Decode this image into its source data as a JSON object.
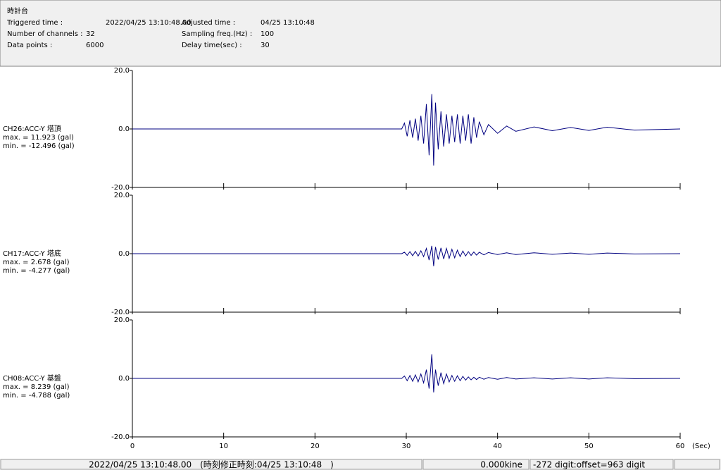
{
  "header": {
    "title": "時計台",
    "fields": [
      {
        "label": "Triggered time :",
        "value": "2022/04/25 13:10:48.00"
      },
      {
        "label": "Adjusted time :",
        "value": "04/25 13:10:48"
      },
      {
        "label": "Number of channels :",
        "value": "32"
      },
      {
        "label": "Sampling freq.(Hz) :",
        "value": "100"
      },
      {
        "label": "Data points :",
        "value": "6000"
      },
      {
        "label": "Delay time(sec) :",
        "value": "30"
      }
    ]
  },
  "chart_data": [
    {
      "type": "line",
      "label": "CH26:ACC-Y 塔頂",
      "max_label": "max. = 11.923 (gal)",
      "min_label": "min. = -12.496 (gal)",
      "ylim": [
        -20,
        20
      ],
      "yticks": [
        {
          "value": 20,
          "label": "20.0"
        },
        {
          "value": 0,
          "label": "0.0"
        },
        {
          "value": -20,
          "label": "-20.0"
        }
      ],
      "xlim": [
        0,
        60
      ],
      "xticks": [
        0,
        10,
        20,
        30,
        40,
        50,
        60
      ],
      "x": [
        0,
        29.5,
        29.8,
        30.1,
        30.4,
        30.7,
        31.0,
        31.3,
        31.6,
        31.9,
        32.2,
        32.5,
        32.8,
        33.0,
        33.2,
        33.5,
        33.8,
        34.1,
        34.4,
        34.7,
        35.0,
        35.3,
        35.6,
        35.9,
        36.2,
        36.5,
        36.8,
        37.1,
        37.4,
        37.7,
        38.0,
        38.5,
        39.0,
        40.0,
        41.0,
        42.0,
        44.0,
        46.0,
        48.0,
        50.0,
        52.0,
        55.0,
        60.0
      ],
      "series": [
        {
          "color": "#000080",
          "values": [
            0,
            0,
            2,
            -2.5,
            3,
            -3,
            3.5,
            -4,
            4.5,
            -5,
            8.5,
            -9,
            11.923,
            -12.496,
            9,
            -7,
            6,
            -6,
            5,
            -5,
            4.5,
            -4.5,
            5,
            -5,
            4.5,
            -4,
            5,
            -5,
            4,
            -3,
            2.5,
            -2,
            1.5,
            -1.5,
            1,
            -0.8,
            0.7,
            -0.6,
            0.5,
            -0.5,
            0.6,
            -0.4,
            0
          ]
        }
      ]
    },
    {
      "type": "line",
      "label": "CH17:ACC-Y 塔底",
      "max_label": "max. = 2.678 (gal)",
      "min_label": "min. = -4.277 (gal)",
      "ylim": [
        -20,
        20
      ],
      "yticks": [
        {
          "value": 20,
          "label": "20.0"
        },
        {
          "value": 0,
          "label": "0.0"
        },
        {
          "value": -20,
          "label": "-20.0"
        }
      ],
      "xlim": [
        0,
        60
      ],
      "xticks": [
        0,
        10,
        20,
        30,
        40,
        50,
        60
      ],
      "x": [
        0,
        29.5,
        29.8,
        30.1,
        30.4,
        30.7,
        31.0,
        31.3,
        31.6,
        31.9,
        32.2,
        32.5,
        32.8,
        33.0,
        33.2,
        33.5,
        33.8,
        34.1,
        34.4,
        34.7,
        35.0,
        35.3,
        35.6,
        35.9,
        36.2,
        36.5,
        36.8,
        37.1,
        37.4,
        37.7,
        38.0,
        38.5,
        39.0,
        40.0,
        41.0,
        42.0,
        44.0,
        46.0,
        48.0,
        50.0,
        52.0,
        55.0,
        60.0
      ],
      "series": [
        {
          "color": "#000080",
          "values": [
            0,
            0,
            0.5,
            -0.6,
            0.7,
            -0.7,
            0.8,
            -0.8,
            1,
            -1,
            1.8,
            -2.2,
            2.678,
            -4.277,
            2.3,
            -2,
            2,
            -1.8,
            1.8,
            -1.6,
            1.5,
            -1.4,
            1.2,
            -1,
            0.9,
            -0.8,
            0.7,
            -0.6,
            0.6,
            -0.5,
            0.5,
            -0.4,
            0.4,
            -0.3,
            0.3,
            -0.3,
            0.3,
            -0.2,
            0.2,
            -0.2,
            0.2,
            -0.1,
            0
          ]
        }
      ]
    },
    {
      "type": "line",
      "label": "CH08:ACC-Y 基盤",
      "max_label": "max. = 8.239 (gal)",
      "min_label": "min. = -4.788 (gal)",
      "ylim": [
        -20,
        20
      ],
      "yticks": [
        {
          "value": 20,
          "label": "20.0"
        },
        {
          "value": 0,
          "label": "0.0"
        },
        {
          "value": -20,
          "label": "-20.0"
        }
      ],
      "xlim": [
        0,
        60
      ],
      "xticks": [
        0,
        10,
        20,
        30,
        40,
        50,
        60
      ],
      "xlabel": "(Sec)",
      "x": [
        0,
        29.5,
        29.8,
        30.1,
        30.4,
        30.7,
        31.0,
        31.3,
        31.6,
        31.9,
        32.2,
        32.5,
        32.8,
        33.0,
        33.2,
        33.5,
        33.8,
        34.1,
        34.4,
        34.7,
        35.0,
        35.3,
        35.6,
        35.9,
        36.2,
        36.5,
        36.8,
        37.1,
        37.4,
        37.7,
        38.0,
        38.5,
        39.0,
        40.0,
        41.0,
        42.0,
        44.0,
        46.0,
        48.0,
        50.0,
        52.0,
        55.0,
        60.0
      ],
      "series": [
        {
          "color": "#000080",
          "values": [
            0,
            0,
            0.8,
            -0.8,
            1,
            -1,
            1.2,
            -1.2,
            1.5,
            -1.5,
            3,
            -3.5,
            8.239,
            -4.788,
            3,
            -2.5,
            2,
            -1.8,
            1.5,
            -1.2,
            1,
            -1,
            0.9,
            -0.8,
            0.7,
            -0.6,
            0.5,
            -0.5,
            0.4,
            -0.4,
            0.4,
            -0.3,
            0.3,
            -0.3,
            0.3,
            -0.2,
            0.2,
            -0.2,
            0.2,
            -0.2,
            0.2,
            -0.1,
            0
          ]
        }
      ]
    }
  ],
  "status": {
    "cells": [
      "2022/04/25 13:10:48.00　(時刻修正時刻:04/25 13:10:48　)",
      "0.000kine",
      "-272 digit:offset=963 digit"
    ]
  }
}
